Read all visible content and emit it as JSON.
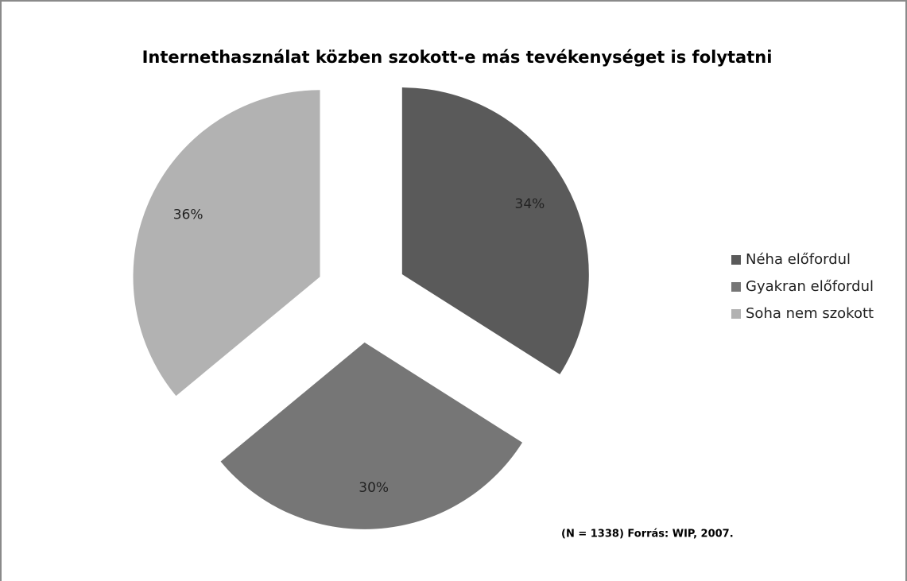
{
  "chart_data": {
    "type": "pie",
    "title": "Internethasználat közben szokott-e más tevékenységet is folytatni",
    "categories": [
      "Néha előfordul",
      "Gyakran előfordul",
      "Soha nem szokott"
    ],
    "values": [
      34,
      30,
      36
    ],
    "value_labels": [
      "34%",
      "30%",
      "36%"
    ],
    "colors": [
      "#5a5a5a",
      "#767676",
      "#b2b2b2"
    ],
    "legend": "right",
    "note": "(N = 1338) Forrás: WIP, 2007."
  }
}
